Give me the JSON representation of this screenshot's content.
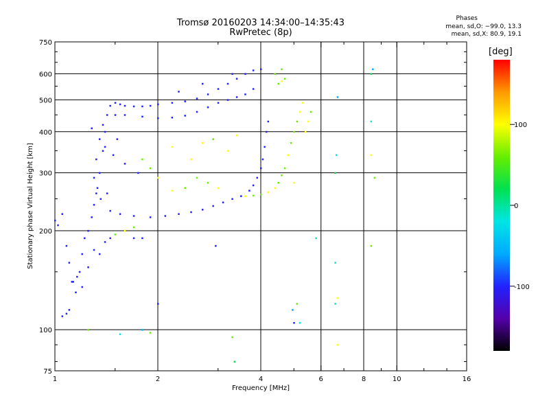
{
  "header": {
    "title": "Tromsø 20160203 14:34:00–14:35:43",
    "subtitle": "RwPretec (8p)"
  },
  "phase_box": {
    "title": "Phases",
    "line1": "mean, sd,O: −99.0, 13.3",
    "line2": "mean, sd,X:  80.9, 19.1"
  },
  "colorbar": {
    "unit": "deg",
    "ticks": [
      100,
      0,
      -100
    ],
    "range": [
      -180,
      180
    ],
    "colors": [
      "#000000",
      "#5500aa",
      "#2222ff",
      "#00aaff",
      "#00e5e5",
      "#00e050",
      "#66ee00",
      "#ffff00",
      "#ff9900",
      "#ff0000"
    ]
  },
  "chart_data": {
    "type": "scatter",
    "title": "Tromsø 20160203 14:34:00–14:35:43",
    "subtitle": "RwPretec (8p)",
    "xlabel": "Frequency [MHz]",
    "ylabel": "Stationary phase Virtual Height [km]",
    "xscale": "log",
    "yscale": "log",
    "xlim": [
      1,
      16
    ],
    "ylim": [
      75,
      750
    ],
    "x_ticks": [
      1,
      2,
      4,
      6,
      8,
      10,
      16
    ],
    "y_ticks": [
      75,
      100,
      200,
      300,
      400,
      500,
      600,
      750
    ],
    "x_grid": [
      2,
      4,
      6,
      8,
      10
    ],
    "y_grid": [
      100,
      200,
      300,
      400,
      500,
      600
    ],
    "colorbar_label": "deg",
    "series": [
      {
        "mode": "O",
        "mean_phase": -99.0,
        "sd_phase": 13.3,
        "points": [
          [
            1.0,
            215
          ],
          [
            1.02,
            208
          ],
          [
            1.05,
            225
          ],
          [
            1.08,
            180
          ],
          [
            1.1,
            160
          ],
          [
            1.12,
            140
          ],
          [
            1.15,
            130
          ],
          [
            1.18,
            150
          ],
          [
            1.2,
            170
          ],
          [
            1.22,
            190
          ],
          [
            1.25,
            200
          ],
          [
            1.28,
            220
          ],
          [
            1.3,
            240
          ],
          [
            1.32,
            260
          ],
          [
            1.35,
            300
          ],
          [
            1.38,
            350
          ],
          [
            1.4,
            400
          ],
          [
            1.42,
            450
          ],
          [
            1.45,
            480
          ],
          [
            1.5,
            490
          ],
          [
            1.55,
            485
          ],
          [
            1.6,
            480
          ],
          [
            1.7,
            478
          ],
          [
            1.8,
            478
          ],
          [
            1.9,
            480
          ],
          [
            2.0,
            485
          ],
          [
            2.2,
            490
          ],
          [
            2.4,
            495
          ],
          [
            2.6,
            505
          ],
          [
            2.8,
            520
          ],
          [
            3.0,
            540
          ],
          [
            3.2,
            560
          ],
          [
            3.4,
            580
          ],
          [
            3.6,
            600
          ],
          [
            3.8,
            615
          ],
          [
            1.6,
            450
          ],
          [
            1.8,
            445
          ],
          [
            2.0,
            440
          ],
          [
            2.2,
            442
          ],
          [
            2.4,
            448
          ],
          [
            2.6,
            460
          ],
          [
            2.8,
            475
          ],
          [
            3.0,
            490
          ],
          [
            3.2,
            500
          ],
          [
            3.4,
            510
          ],
          [
            3.6,
            520
          ],
          [
            3.8,
            540
          ],
          [
            1.45,
            230
          ],
          [
            1.55,
            225
          ],
          [
            1.7,
            222
          ],
          [
            1.9,
            220
          ],
          [
            2.1,
            222
          ],
          [
            2.3,
            225
          ],
          [
            2.5,
            228
          ],
          [
            2.7,
            232
          ],
          [
            2.9,
            238
          ],
          [
            3.1,
            244
          ],
          [
            3.3,
            250
          ],
          [
            3.5,
            255
          ],
          [
            3.7,
            265
          ],
          [
            3.8,
            275
          ],
          [
            3.9,
            290
          ],
          [
            4.0,
            310
          ],
          [
            4.05,
            330
          ],
          [
            4.1,
            360
          ],
          [
            4.15,
            400
          ],
          [
            4.2,
            430
          ],
          [
            1.05,
            110
          ],
          [
            1.08,
            112
          ],
          [
            1.1,
            115
          ],
          [
            1.13,
            140
          ],
          [
            1.16,
            145
          ],
          [
            1.2,
            135
          ],
          [
            1.25,
            155
          ],
          [
            1.3,
            175
          ],
          [
            1.35,
            170
          ],
          [
            1.4,
            185
          ],
          [
            1.45,
            190
          ],
          [
            1.32,
            330
          ],
          [
            1.35,
            380
          ],
          [
            1.38,
            420
          ],
          [
            1.4,
            360
          ],
          [
            1.3,
            290
          ],
          [
            1.33,
            270
          ],
          [
            1.36,
            250
          ],
          [
            1.42,
            260
          ],
          [
            1.48,
            340
          ],
          [
            1.52,
            380
          ],
          [
            1.28,
            410
          ],
          [
            1.5,
            450
          ],
          [
            2.3,
            530
          ],
          [
            2.7,
            560
          ],
          [
            3.3,
            600
          ],
          [
            4.0,
            620
          ],
          [
            1.6,
            320
          ],
          [
            1.75,
            300
          ],
          [
            1.8,
            190
          ],
          [
            1.7,
            190
          ]
        ]
      },
      {
        "mode": "X",
        "mean_phase": 80.9,
        "sd_phase": 19.1,
        "points": [
          [
            3.6,
            255
          ],
          [
            3.8,
            256
          ],
          [
            4.0,
            258
          ],
          [
            4.2,
            262
          ],
          [
            4.4,
            270
          ],
          [
            4.5,
            280
          ],
          [
            4.6,
            295
          ],
          [
            4.7,
            310
          ],
          [
            4.8,
            340
          ],
          [
            4.9,
            370
          ],
          [
            5.0,
            400
          ],
          [
            5.1,
            430
          ],
          [
            5.2,
            460
          ],
          [
            5.3,
            490
          ],
          [
            5.4,
            400
          ],
          [
            5.5,
            430
          ],
          [
            5.6,
            460
          ],
          [
            2.6,
            290
          ],
          [
            2.8,
            280
          ],
          [
            3.0,
            270
          ],
          [
            2.4,
            270
          ],
          [
            2.2,
            265
          ],
          [
            1.8,
            330
          ],
          [
            1.9,
            310
          ],
          [
            2.0,
            290
          ],
          [
            2.5,
            330
          ],
          [
            2.7,
            370
          ],
          [
            2.9,
            380
          ],
          [
            4.5,
            560
          ],
          [
            4.6,
            570
          ],
          [
            4.7,
            580
          ],
          [
            4.4,
            600
          ],
          [
            4.6,
            620
          ],
          [
            1.6,
            200
          ],
          [
            1.7,
            205
          ],
          [
            1.5,
            195
          ],
          [
            2.2,
            360
          ],
          [
            3.2,
            350
          ],
          [
            3.4,
            390
          ],
          [
            5.0,
            280
          ]
        ]
      },
      {
        "mode": "scattered",
        "points": [
          [
            5.8,
            190
          ],
          [
            6.6,
            120
          ],
          [
            6.7,
            125
          ],
          [
            6.6,
            160
          ],
          [
            6.6,
            300
          ],
          [
            6.65,
            340
          ],
          [
            6.7,
            510
          ],
          [
            6.7,
            90
          ],
          [
            8.4,
            600
          ],
          [
            8.5,
            620
          ],
          [
            8.4,
            430
          ],
          [
            8.4,
            340
          ],
          [
            8.6,
            290
          ],
          [
            8.4,
            180
          ],
          [
            3.3,
            95
          ],
          [
            3.35,
            80
          ],
          [
            1.8,
            100
          ],
          [
            1.9,
            98
          ],
          [
            1.25,
            100
          ],
          [
            1.55,
            97
          ],
          [
            2.95,
            180
          ],
          [
            5.1,
            120
          ],
          [
            5.2,
            105
          ],
          [
            4.95,
            115
          ],
          [
            5.0,
            105
          ],
          [
            2.0,
            120
          ]
        ]
      }
    ]
  }
}
